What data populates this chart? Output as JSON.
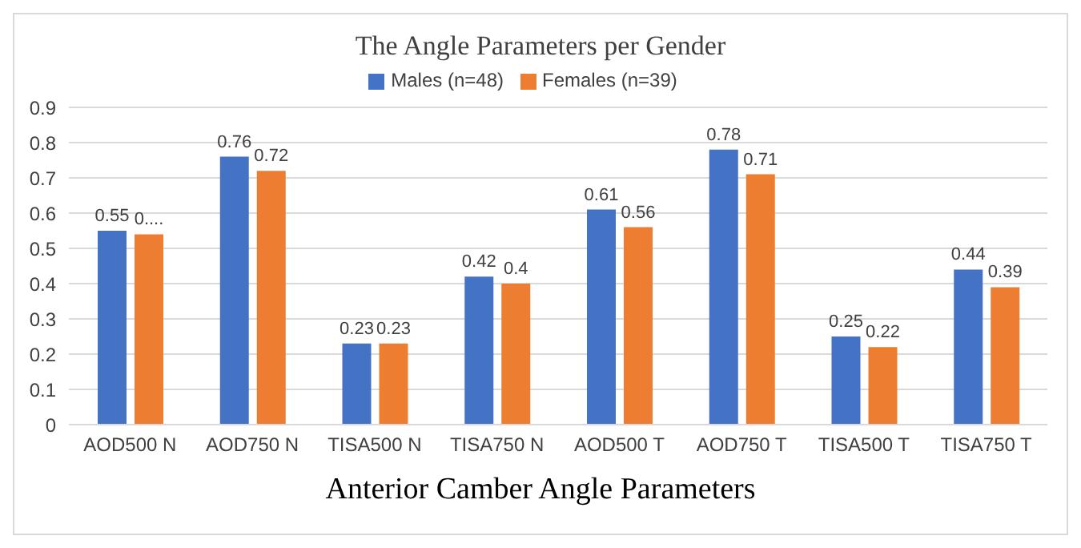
{
  "chart_data": {
    "type": "bar",
    "title": "The Angle Parameters per Gender",
    "xlabel": "Anterior Camber Angle Parameters",
    "categories": [
      "AOD500 N",
      "AOD750 N",
      "TISA500 N",
      "TISA750 N",
      "AOD500 T",
      "AOD750 T",
      "TISA500 T",
      "TISA750 T"
    ],
    "series": [
      {
        "name": "Males (n=48)",
        "color": "#4472c4",
        "values": [
          0.55,
          0.76,
          0.23,
          0.42,
          0.61,
          0.78,
          0.25,
          0.44
        ],
        "value_labels": [
          "0.55",
          "0.76",
          "0.23",
          "0.42",
          "0.61",
          "0.78",
          "0.25",
          "0.44"
        ]
      },
      {
        "name": "Females (n=39)",
        "color": "#ed7d31",
        "values": [
          0.54,
          0.72,
          0.23,
          0.4,
          0.56,
          0.71,
          0.22,
          0.39
        ],
        "value_labels": [
          "0....",
          "0.72",
          "0.23",
          "0.4",
          "0.56",
          "0.71",
          "0.22",
          "0.39"
        ]
      }
    ],
    "ylim": [
      0,
      0.9
    ],
    "yticks": [
      0,
      0.1,
      0.2,
      0.3,
      0.4,
      0.5,
      0.6,
      0.7,
      0.8,
      0.9
    ],
    "grid": "y",
    "legend": "top"
  }
}
